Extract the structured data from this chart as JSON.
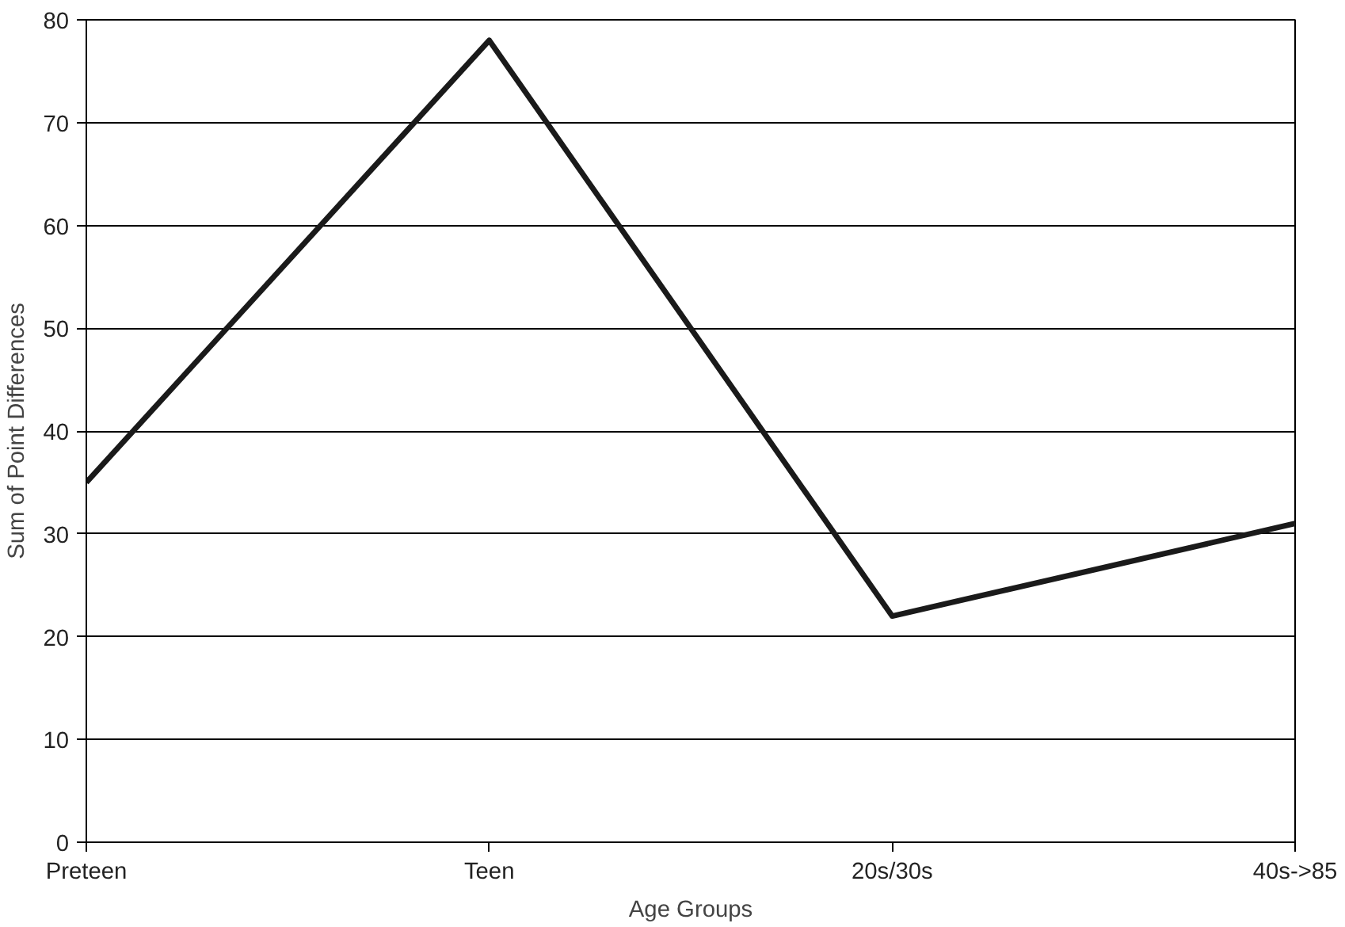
{
  "chart_data": {
    "type": "line",
    "xlabel": "Age Groups",
    "ylabel": "Sum of Point Differences",
    "categories": [
      "Preteen",
      "Teen",
      "20s/30s",
      "40s->85"
    ],
    "series": [
      {
        "color": "#1a1a1a",
        "values": [
          35,
          78,
          22,
          31
        ]
      }
    ],
    "ylim": [
      0,
      80
    ],
    "yticks": [
      0,
      10,
      20,
      30,
      40,
      50,
      60,
      70,
      80
    ],
    "grid": "y",
    "marker": "none",
    "line_style": "solid"
  }
}
